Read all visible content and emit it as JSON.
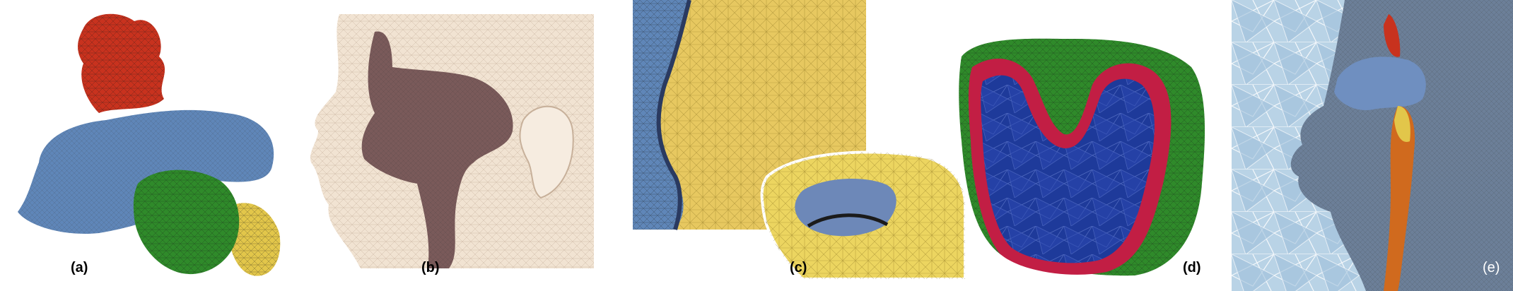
{
  "figure": {
    "panels": [
      {
        "id": "a",
        "label": "(a)"
      },
      {
        "id": "b",
        "label": "(b)"
      },
      {
        "id": "c",
        "label": "(c)"
      },
      {
        "id": "d",
        "label": "(d)"
      },
      {
        "id": "e",
        "label": "(e)"
      }
    ],
    "colors": {
      "red_region": "#c8321e",
      "blue_region": "#5f86b8",
      "green_region": "#2f8a2a",
      "yellow_region": "#e2c64a",
      "brown_airway": "#7a5a5a",
      "skin_mesh": "#f1e3d2",
      "cavity_blue": "#1e3a9a",
      "rim_red": "#c21e44",
      "tet_background": "#b9d3e6"
    }
  }
}
